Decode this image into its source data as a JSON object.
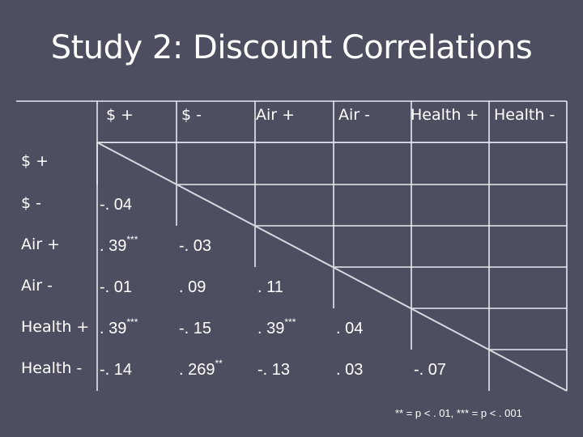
{
  "slide": {
    "title": "Study 2: Discount Correlations",
    "footnote": "** = p < . 01, *** = p < . 001"
  },
  "table": {
    "columns": [
      "$ +",
      "$ -",
      "Air +",
      "Air -",
      "Health +",
      "Health -"
    ],
    "rows": [
      {
        "label": "$ +",
        "cells": []
      },
      {
        "label": "$ -",
        "cells": [
          {
            "v": "-. 04",
            "sig": ""
          }
        ]
      },
      {
        "label": "Air +",
        "cells": [
          {
            "v": ". 39",
            "sig": "***"
          },
          {
            "v": "-. 03",
            "sig": ""
          }
        ]
      },
      {
        "label": "Air -",
        "cells": [
          {
            "v": "-. 01",
            "sig": ""
          },
          {
            "v": ". 09",
            "sig": ""
          },
          {
            "v": ". 11",
            "sig": ""
          }
        ]
      },
      {
        "label": "Health +",
        "cells": [
          {
            "v": ". 39",
            "sig": "***"
          },
          {
            "v": "-. 15",
            "sig": ""
          },
          {
            "v": ". 39",
            "sig": "***"
          },
          {
            "v": ". 04",
            "sig": ""
          }
        ]
      },
      {
        "label": "Health -",
        "cells": [
          {
            "v": "-. 14",
            "sig": ""
          },
          {
            "v": ". 269",
            "sig": "**"
          },
          {
            "v": "-. 13",
            "sig": ""
          },
          {
            "v": ". 03",
            "sig": ""
          },
          {
            "v": "-. 07",
            "sig": ""
          }
        ]
      }
    ]
  },
  "colors": {
    "background": "#4d4f60",
    "text": "#ffffff",
    "gridline": "#e8e8ee",
    "diagonal": "#d8d8e0"
  }
}
